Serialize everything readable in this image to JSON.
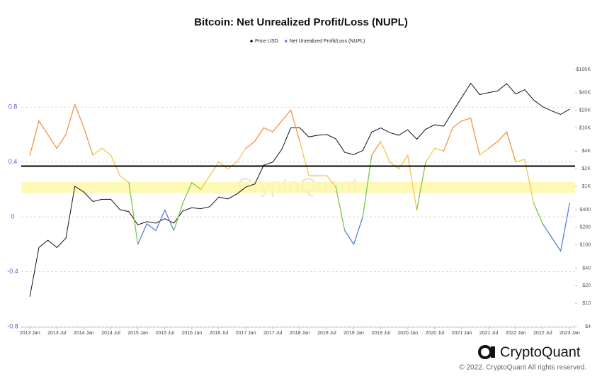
{
  "chart_data": {
    "type": "line",
    "title": "Bitcoin: Net Unrealized Profit/Loss (NUPL)",
    "watermark": "CryptoQuant",
    "footer": {
      "brand": "CryptoQuant",
      "copyright": "© 2022. CryptoQuant All rights reserved."
    },
    "x": [
      2013,
      2013.167,
      2013.333,
      2013.5,
      2013.667,
      2013.833,
      2014,
      2014.167,
      2014.333,
      2014.5,
      2014.667,
      2014.833,
      2015,
      2015.167,
      2015.333,
      2015.5,
      2015.667,
      2015.833,
      2016,
      2016.167,
      2016.333,
      2016.5,
      2016.667,
      2016.833,
      2017,
      2017.167,
      2017.333,
      2017.5,
      2017.667,
      2017.833,
      2018,
      2018.167,
      2018.333,
      2018.5,
      2018.667,
      2018.833,
      2019,
      2019.167,
      2019.333,
      2019.5,
      2019.667,
      2019.833,
      2020,
      2020.167,
      2020.333,
      2020.5,
      2020.667,
      2020.833,
      2021,
      2021.167,
      2021.333,
      2021.5,
      2021.667,
      2021.833,
      2022,
      2022.167,
      2022.333,
      2022.5,
      2022.667,
      2022.833,
      2023
    ],
    "series": [
      {
        "name": "Price USD",
        "color": "#111111",
        "axis": "y2",
        "values": [
          13,
          90,
          120,
          90,
          130,
          1000,
          800,
          550,
          600,
          600,
          400,
          370,
          220,
          250,
          235,
          280,
          235,
          380,
          430,
          415,
          450,
          660,
          610,
          740,
          970,
          1100,
          2300,
          2600,
          4300,
          10000,
          10000,
          7000,
          7500,
          7700,
          6500,
          3800,
          3500,
          4100,
          8500,
          10000,
          8300,
          7500,
          9300,
          6400,
          9500,
          11300,
          10700,
          19000,
          33000,
          58000,
          37000,
          40000,
          43000,
          57000,
          38000,
          45000,
          30000,
          23000,
          19500,
          17000,
          21000
        ]
      },
      {
        "name": "Net Unrealized Profit/Loss (NUPL)",
        "color": "#5b7be6",
        "values": [
          0.45,
          0.7,
          0.6,
          0.5,
          0.6,
          0.82,
          0.65,
          0.45,
          0.5,
          0.45,
          0.3,
          0.25,
          -0.2,
          -0.05,
          -0.1,
          0.05,
          -0.1,
          0.1,
          0.25,
          0.2,
          0.3,
          0.4,
          0.35,
          0.4,
          0.5,
          0.55,
          0.65,
          0.62,
          0.7,
          0.78,
          0.55,
          0.3,
          0.3,
          0.3,
          0.22,
          -0.1,
          -0.2,
          0.0,
          0.45,
          0.55,
          0.4,
          0.35,
          0.45,
          0.05,
          0.4,
          0.5,
          0.48,
          0.65,
          0.7,
          0.72,
          0.45,
          0.5,
          0.55,
          0.62,
          0.4,
          0.42,
          0.1,
          -0.05,
          -0.15,
          -0.25,
          0.1
        ]
      }
    ],
    "color_scale": [
      {
        "min": 0.75,
        "color": "#e8474e"
      },
      {
        "min": 0.5,
        "color": "#f0944a"
      },
      {
        "min": 0.25,
        "color": "#f2c94c"
      },
      {
        "min": 0,
        "color": "#7cc843"
      },
      {
        "color": "#5b7be6"
      }
    ],
    "reference_line": 0.37,
    "highlight_band": [
      0.175,
      0.255
    ],
    "xlim": [
      2012.84,
      2023.1
    ],
    "xticks": [
      {
        "value": 2013,
        "label": "2013 Jan"
      },
      {
        "value": 2013.5,
        "label": "2013 Jul"
      },
      {
        "value": 2014,
        "label": "2014 Jan"
      },
      {
        "value": 2014.5,
        "label": "2014 Jul"
      },
      {
        "value": 2015,
        "label": "2015 Jan"
      },
      {
        "value": 2015.5,
        "label": "2015 Jul"
      },
      {
        "value": 2016,
        "label": "2016 Jan"
      },
      {
        "value": 2016.5,
        "label": "2016 Jul"
      },
      {
        "value": 2017,
        "label": "2017 Jan"
      },
      {
        "value": 2017.5,
        "label": "2017 Jul"
      },
      {
        "value": 2018,
        "label": "2018 Jan"
      },
      {
        "value": 2018.5,
        "label": "2018 Jul"
      },
      {
        "value": 2019,
        "label": "2019 Jan"
      },
      {
        "value": 2019.5,
        "label": "2019 Jul"
      },
      {
        "value": 2020,
        "label": "2020 Jan"
      },
      {
        "value": 2020.5,
        "label": "2020 Jul"
      },
      {
        "value": 2021,
        "label": "2021 Jan"
      },
      {
        "value": 2021.5,
        "label": "2021 Jul"
      },
      {
        "value": 2022,
        "label": "2022 Jan"
      },
      {
        "value": 2022.5,
        "label": "2022 Jul"
      },
      {
        "value": 2023,
        "label": "2023 Jan"
      }
    ],
    "ylim": [
      -0.8,
      1.075
    ],
    "yticks": [
      0.8,
      0.4,
      0,
      -0.4,
      -0.8
    ],
    "y2lim": [
      4,
      100000
    ],
    "y2scale": "log",
    "y2ticks": [
      {
        "value": 100000,
        "label": "$100K"
      },
      {
        "value": 40000,
        "label": "$40K"
      },
      {
        "value": 20000,
        "label": "$20K"
      },
      {
        "value": 10000,
        "label": "$10K"
      },
      {
        "value": 4000,
        "label": "$4K"
      },
      {
        "value": 2000,
        "label": "$2K"
      },
      {
        "value": 1000,
        "label": "$1K"
      },
      {
        "value": 400,
        "label": "$400"
      },
      {
        "value": 200,
        "label": "$200"
      },
      {
        "value": 100,
        "label": "$100"
      },
      {
        "value": 40,
        "label": "$40"
      },
      {
        "value": 20,
        "label": "$20"
      },
      {
        "value": 10,
        "label": "$10"
      },
      {
        "value": 4,
        "label": "$4"
      }
    ],
    "grid": true
  }
}
